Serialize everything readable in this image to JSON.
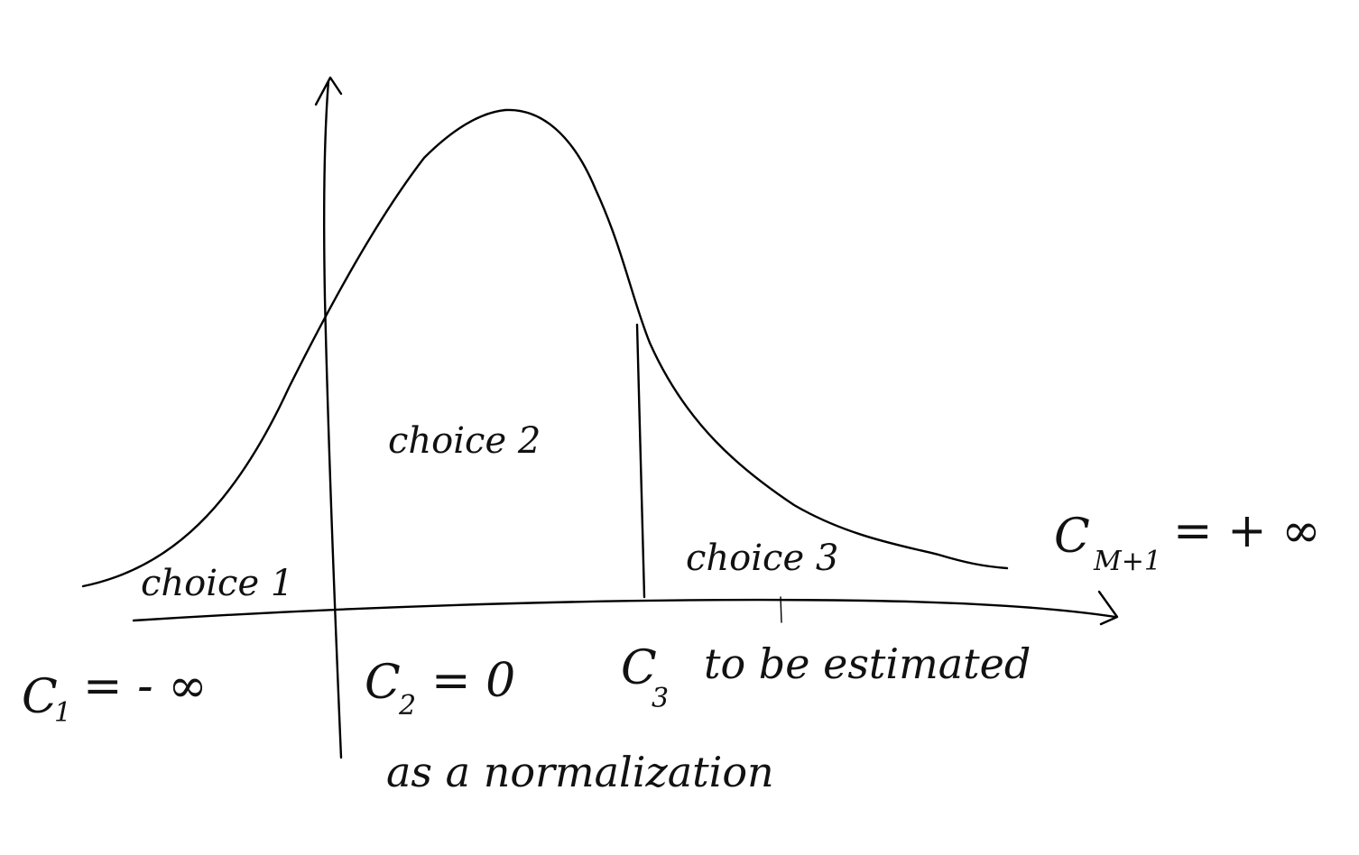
{
  "regions": [
    {
      "label": "choice 1"
    },
    {
      "label": "choice 2"
    },
    {
      "label": "choice 3"
    }
  ],
  "cutpoints": [
    {
      "symbol": "C",
      "sub": "1",
      "rest": "= - ∞"
    },
    {
      "symbol": "C",
      "sub": "2",
      "rest": "= 0"
    },
    {
      "symbol": "C",
      "sub": "3",
      "rest": "to be estimated"
    },
    {
      "symbol": "C",
      "sub": "M+1",
      "rest": "= + ∞"
    }
  ],
  "notes": {
    "normalization": "as a normalization"
  }
}
